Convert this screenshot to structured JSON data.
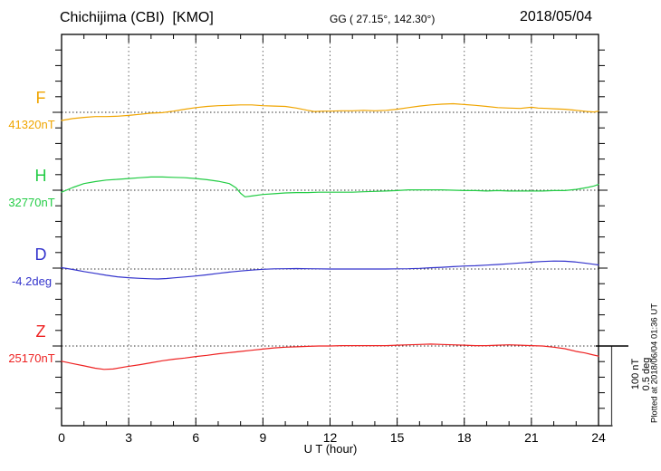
{
  "header": {
    "station_title": "Chichijima (CBI)  [KMO]",
    "coords": "GG ( 27.15°, 142.30°)",
    "date": "2018/05/04"
  },
  "axis": {
    "xlabel": "U T (hour)",
    "x_ticks": [
      "0",
      "3",
      "6",
      "9",
      "12",
      "15",
      "18",
      "21",
      "24"
    ]
  },
  "scalebar": {
    "label_nt": "100 nT",
    "label_deg": "0.5 deg"
  },
  "footer_vertical": "Plotted at 2018/06/04 01:36 UT",
  "colors": {
    "F": "#f0a500",
    "H": "#22cc44",
    "D": "#3333cc",
    "Z": "#ee2222",
    "frame": "#000000",
    "grid": "#666666",
    "baseline_dots": "#333333"
  },
  "components": [
    {
      "id": "F",
      "label": "F",
      "ref_label": "41320nT",
      "unit": "nT",
      "ref": 41320
    },
    {
      "id": "H",
      "label": "H",
      "ref_label": "32770nT",
      "unit": "nT",
      "ref": 32770
    },
    {
      "id": "D",
      "label": "D",
      "ref_label": "-4.2deg",
      "unit": "deg",
      "ref": -4.2
    },
    {
      "id": "Z",
      "label": "Z",
      "ref_label": "25170nT",
      "unit": "nT",
      "ref": 25170
    }
  ],
  "chart_data": {
    "type": "line",
    "title": "Chichijima (CBI) [KMO] magnetogram, 2018/05/04",
    "xlabel": "U T (hour)",
    "x_range": [
      0,
      24
    ],
    "x_gridlines_hours": [
      3,
      6,
      9,
      12,
      15,
      18,
      21
    ],
    "grid": "dotted",
    "scale_per_division": {
      "nT": 100,
      "deg": 0.5
    },
    "series": [
      {
        "name": "F",
        "unit": "nT",
        "baseline": 41320,
        "color": "#f0a500",
        "points": [
          [
            0,
            41309.5
          ],
          [
            0.5,
            41312
          ],
          [
            1,
            41313.5
          ],
          [
            1.5,
            41314.5
          ],
          [
            2,
            41314.5
          ],
          [
            2.5,
            41315
          ],
          [
            3,
            41316
          ],
          [
            3.5,
            41317.5
          ],
          [
            4,
            41319
          ],
          [
            4.5,
            41319.5
          ],
          [
            5,
            41321.5
          ],
          [
            5.5,
            41324
          ],
          [
            6,
            41326
          ],
          [
            6.5,
            41327.5
          ],
          [
            7,
            41328.5
          ],
          [
            7.5,
            41329
          ],
          [
            8,
            41329.5
          ],
          [
            8.5,
            41329.5
          ],
          [
            9,
            41328.5
          ],
          [
            9.5,
            41328
          ],
          [
            10,
            41327.5
          ],
          [
            10.5,
            41325.5
          ],
          [
            11,
            41322.5
          ],
          [
            11.3,
            41321
          ],
          [
            11.7,
            41321.5
          ],
          [
            12,
            41321.5
          ],
          [
            12.5,
            41322
          ],
          [
            13,
            41322
          ],
          [
            13.5,
            41322.5
          ],
          [
            14,
            41322
          ],
          [
            14.5,
            41322.5
          ],
          [
            15,
            41324
          ],
          [
            15.5,
            41326
          ],
          [
            16,
            41328
          ],
          [
            16.5,
            41329.5
          ],
          [
            17,
            41330.5
          ],
          [
            17.5,
            41331
          ],
          [
            18,
            41330
          ],
          [
            18.5,
            41329
          ],
          [
            19,
            41327.5
          ],
          [
            19.5,
            41326
          ],
          [
            20,
            41325.5
          ],
          [
            20.5,
            41325
          ],
          [
            21,
            41326.5
          ],
          [
            21.3,
            41325.5
          ],
          [
            21.7,
            41325
          ],
          [
            22,
            41324.5
          ],
          [
            22.5,
            41324
          ],
          [
            23,
            41322.5
          ],
          [
            23.5,
            41321
          ],
          [
            23.8,
            41320.5
          ],
          [
            24,
            41321.5
          ]
        ]
      },
      {
        "name": "H",
        "unit": "nT",
        "baseline": 32770,
        "color": "#22cc44",
        "points": [
          [
            0,
            32767.5
          ],
          [
            0.5,
            32773.5
          ],
          [
            1,
            32778.5
          ],
          [
            1.5,
            32781
          ],
          [
            2,
            32783
          ],
          [
            2.5,
            32784
          ],
          [
            3,
            32785
          ],
          [
            3.5,
            32786
          ],
          [
            4,
            32787
          ],
          [
            4.5,
            32787
          ],
          [
            5,
            32786.5
          ],
          [
            5.5,
            32786
          ],
          [
            6,
            32785
          ],
          [
            6.5,
            32783.5
          ],
          [
            7,
            32781.5
          ],
          [
            7.5,
            32778.5
          ],
          [
            7.8,
            32773
          ],
          [
            8,
            32766
          ],
          [
            8.2,
            32761.5
          ],
          [
            8.5,
            32762.5
          ],
          [
            9,
            32764.5
          ],
          [
            9.5,
            32765.5
          ],
          [
            10,
            32766.5
          ],
          [
            10.5,
            32767
          ],
          [
            11,
            32767
          ],
          [
            11.5,
            32767.5
          ],
          [
            12,
            32767.5
          ],
          [
            12.5,
            32767.5
          ],
          [
            13,
            32767.5
          ],
          [
            13.5,
            32768
          ],
          [
            14,
            32768.5
          ],
          [
            14.5,
            32769
          ],
          [
            15,
            32769.5
          ],
          [
            15.5,
            32770.5
          ],
          [
            16,
            32770.5
          ],
          [
            16.5,
            32770.5
          ],
          [
            17,
            32770.5
          ],
          [
            17.5,
            32770
          ],
          [
            18,
            32769.5
          ],
          [
            18.5,
            32769.5
          ],
          [
            19,
            32769
          ],
          [
            19.5,
            32769.5
          ],
          [
            20,
            32769
          ],
          [
            20.5,
            32769
          ],
          [
            21,
            32769
          ],
          [
            21.5,
            32769
          ],
          [
            22,
            32769.5
          ],
          [
            22.5,
            32769.5
          ],
          [
            23,
            32771
          ],
          [
            23.5,
            32773.5
          ],
          [
            23.8,
            32775.5
          ],
          [
            24,
            32777.5
          ]
        ]
      },
      {
        "name": "D",
        "unit": "deg",
        "baseline": -4.2,
        "color": "#3333cc",
        "points": [
          [
            0,
            -4.191
          ],
          [
            0.5,
            -4.203
          ],
          [
            1,
            -4.216
          ],
          [
            1.5,
            -4.228
          ],
          [
            2,
            -4.24
          ],
          [
            2.5,
            -4.25
          ],
          [
            3,
            -4.256
          ],
          [
            3.5,
            -4.26
          ],
          [
            4,
            -4.263
          ],
          [
            4.3,
            -4.264
          ],
          [
            4.7,
            -4.261
          ],
          [
            5,
            -4.257
          ],
          [
            5.5,
            -4.251
          ],
          [
            6,
            -4.245
          ],
          [
            6.5,
            -4.237
          ],
          [
            7,
            -4.228
          ],
          [
            7.5,
            -4.22
          ],
          [
            8,
            -4.213
          ],
          [
            8.5,
            -4.207
          ],
          [
            9,
            -4.202
          ],
          [
            9.5,
            -4.199
          ],
          [
            10,
            -4.198
          ],
          [
            10.5,
            -4.197
          ],
          [
            11,
            -4.198
          ],
          [
            11.5,
            -4.199
          ],
          [
            12,
            -4.2
          ],
          [
            12.5,
            -4.2
          ],
          [
            13,
            -4.2
          ],
          [
            13.5,
            -4.2
          ],
          [
            14,
            -4.2
          ],
          [
            14.5,
            -4.2
          ],
          [
            15,
            -4.199
          ],
          [
            15.5,
            -4.198
          ],
          [
            16,
            -4.196
          ],
          [
            16.5,
            -4.192
          ],
          [
            17,
            -4.189
          ],
          [
            17.5,
            -4.185
          ],
          [
            18,
            -4.181
          ],
          [
            18.5,
            -4.179
          ],
          [
            19,
            -4.175
          ],
          [
            19.5,
            -4.171
          ],
          [
            20,
            -4.166
          ],
          [
            20.5,
            -4.161
          ],
          [
            21,
            -4.156
          ],
          [
            21.5,
            -4.152
          ],
          [
            22,
            -4.149
          ],
          [
            22.5,
            -4.15
          ],
          [
            23,
            -4.155
          ],
          [
            23.5,
            -4.164
          ],
          [
            23.8,
            -4.17
          ],
          [
            24,
            -4.174
          ]
        ]
      },
      {
        "name": "Z",
        "unit": "nT",
        "baseline": 25170,
        "color": "#ee2222",
        "points": [
          [
            0,
            25150.5
          ],
          [
            0.5,
            25147.5
          ],
          [
            1,
            25144.5
          ],
          [
            1.5,
            25141.5
          ],
          [
            1.9,
            25140
          ],
          [
            2.3,
            25140.5
          ],
          [
            2.9,
            25143.5
          ],
          [
            3.5,
            25146
          ],
          [
            4,
            25148.5
          ],
          [
            4.5,
            25151
          ],
          [
            5,
            25153
          ],
          [
            5.5,
            25154.5
          ],
          [
            6,
            25156.5
          ],
          [
            6.5,
            25158
          ],
          [
            7,
            25160
          ],
          [
            7.5,
            25161.5
          ],
          [
            8,
            25163
          ],
          [
            8.5,
            25164.5
          ],
          [
            9,
            25166
          ],
          [
            9.5,
            25167.5
          ],
          [
            10,
            25168.5
          ],
          [
            10.5,
            25169
          ],
          [
            11,
            25169.5
          ],
          [
            11.5,
            25170
          ],
          [
            12,
            25170
          ],
          [
            12.5,
            25170.5
          ],
          [
            13,
            25170.5
          ],
          [
            13.5,
            25170.5
          ],
          [
            14,
            25170.5
          ],
          [
            14.5,
            25170.5
          ],
          [
            15,
            25171
          ],
          [
            15.5,
            25171.5
          ],
          [
            16,
            25172
          ],
          [
            16.5,
            25172.5
          ],
          [
            17,
            25172
          ],
          [
            17.5,
            25171.5
          ],
          [
            18,
            25171
          ],
          [
            18.5,
            25170.5
          ],
          [
            19,
            25170.5
          ],
          [
            19.5,
            25171
          ],
          [
            20,
            25171.5
          ],
          [
            20.5,
            25171
          ],
          [
            21,
            25170.5
          ],
          [
            21.5,
            25170
          ],
          [
            22,
            25168.5
          ],
          [
            22.5,
            25166.5
          ],
          [
            23,
            25163
          ],
          [
            23.4,
            25161
          ],
          [
            23.7,
            25159
          ],
          [
            24,
            25157
          ]
        ]
      }
    ]
  }
}
